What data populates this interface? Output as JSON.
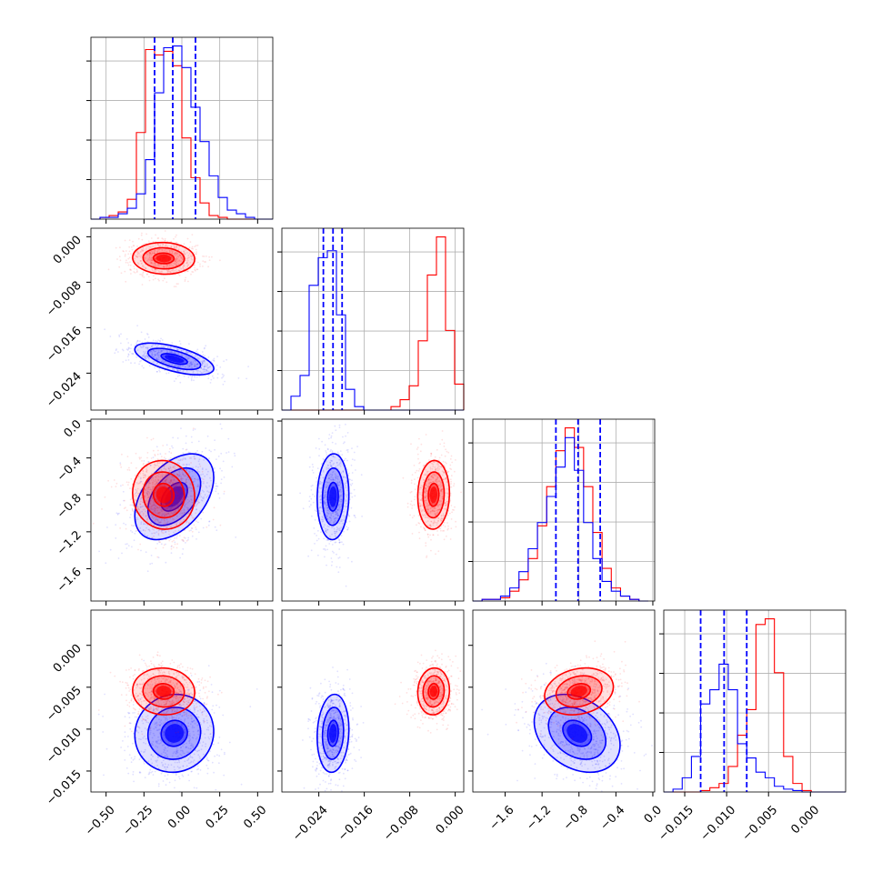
{
  "chart_data": {
    "type": "corner",
    "colors": {
      "blue": "#0000ff",
      "red": "#ff0000",
      "grid": "#b0b0b0",
      "frame": "#000000"
    },
    "grid": true,
    "parameters": [
      {
        "range": [
          -0.6,
          0.6
        ],
        "ticks": [
          -0.5,
          -0.25,
          0.0,
          0.25,
          0.5
        ],
        "tick_labels": [
          "−0.50",
          "−0.25",
          "0.00",
          "0.25",
          "0.50"
        ]
      },
      {
        "range": [
          -0.0305,
          0.0015
        ],
        "ticks": [
          -0.024,
          -0.016,
          -0.008,
          0.0
        ],
        "tick_labels": [
          "−0.024",
          "−0.016",
          "−0.008",
          "0.000"
        ]
      },
      {
        "range": [
          -1.95,
          0.02
        ],
        "ticks": [
          -1.6,
          -1.2,
          -0.8,
          -0.4,
          0.0
        ],
        "tick_labels": [
          "−1.6",
          "−1.2",
          "−0.8",
          "−0.4",
          "0.0"
        ]
      },
      {
        "range": [
          -0.0175,
          0.0042
        ],
        "ticks": [
          -0.015,
          -0.01,
          -0.005,
          0.0
        ],
        "tick_labels": [
          "−0.015",
          "−0.010",
          "−0.005",
          "0.000"
        ]
      }
    ],
    "series": [
      {
        "color": "blue",
        "mean": [
          -0.05,
          -0.0215,
          -0.82,
          -0.0105
        ],
        "std": [
          0.14,
          0.0015,
          0.25,
          0.0025
        ],
        "corr": [
          [
            1,
            -0.6,
            0.45,
            0.05
          ],
          [
            -0.6,
            1,
            0.05,
            0.1
          ],
          [
            0.45,
            0.05,
            1,
            -0.3
          ],
          [
            0.05,
            0.1,
            -0.3,
            1
          ]
        ]
      },
      {
        "color": "red",
        "mean": [
          -0.12,
          -0.0038,
          -0.8,
          -0.0055
        ],
        "std": [
          0.11,
          0.0015,
          0.2,
          0.0015
        ],
        "corr": [
          [
            1,
            -0.05,
            -0.05,
            -0.05
          ],
          [
            -0.05,
            1,
            0.05,
            0.05
          ],
          [
            -0.05,
            0.05,
            1,
            0.2
          ],
          [
            -0.05,
            0.05,
            0.2,
            1
          ]
        ]
      }
    ],
    "quantile_lines": [
      {
        "color": "blue",
        "values": [
          -0.18,
          -0.06,
          0.09
        ]
      },
      {
        "color": "blue",
        "values": [
          -0.0232,
          -0.0215,
          -0.0199
        ]
      },
      {
        "color": "blue",
        "values": [
          -1.05,
          -0.81,
          -0.57
        ]
      },
      {
        "color": "blue",
        "values": [
          -0.0131,
          -0.0103,
          -0.0076
        ]
      }
    ],
    "histograms": [
      {
        "edges": [
          -0.6,
          -0.54,
          -0.48,
          -0.42,
          -0.36,
          -0.3,
          -0.24,
          -0.18,
          -0.12,
          -0.06,
          0.0,
          0.06,
          0.12,
          0.18,
          0.24,
          0.3,
          0.36,
          0.42,
          0.48,
          0.54,
          0.6
        ],
        "blue": [
          0,
          1,
          1,
          3,
          6,
          14,
          33,
          70,
          95,
          96,
          84,
          62,
          43,
          24,
          12,
          5,
          3,
          1,
          0,
          0
        ],
        "red": [
          0,
          1,
          2,
          4,
          11,
          48,
          94,
          91,
          93,
          85,
          45,
          23,
          9,
          2,
          1,
          0,
          0,
          0,
          0,
          0
        ]
      },
      {
        "edges": [
          -0.0305,
          -0.0289,
          -0.0273,
          -0.0257,
          -0.0241,
          -0.0225,
          -0.0209,
          -0.0193,
          -0.0177,
          -0.0161,
          -0.0145,
          -0.0129,
          -0.0113,
          -0.0097,
          -0.0081,
          -0.0065,
          -0.0049,
          -0.0033,
          -0.0017,
          -0.0001,
          0.0015
        ],
        "blue": [
          0,
          8,
          20,
          72,
          88,
          92,
          55,
          12,
          2,
          0,
          0,
          0,
          0,
          0,
          0,
          0,
          0,
          0,
          0,
          0
        ],
        "red": [
          0,
          0,
          0,
          0,
          0,
          0,
          0,
          0,
          0,
          0,
          0,
          0,
          2,
          6,
          14,
          40,
          78,
          100,
          46,
          15
        ]
      },
      {
        "edges": [
          -1.95,
          -1.85,
          -1.75,
          -1.65,
          -1.55,
          -1.45,
          -1.35,
          -1.25,
          -1.15,
          -1.05,
          -0.95,
          -0.85,
          -0.75,
          -0.65,
          -0.55,
          -0.45,
          -0.35,
          -0.25,
          -0.15,
          -0.05
        ],
        "blue": [
          0,
          1,
          1,
          3,
          8,
          18,
          32,
          48,
          64,
          82,
          100,
          80,
          48,
          26,
          12,
          6,
          3,
          1,
          0
        ],
        "red": [
          0,
          1,
          1,
          2,
          6,
          13,
          26,
          46,
          70,
          92,
          106,
          94,
          70,
          42,
          20,
          8,
          3,
          1,
          0
        ]
      },
      {
        "edges": [
          -0.0175,
          -0.0164,
          -0.0153,
          -0.0142,
          -0.0131,
          -0.012,
          -0.0109,
          -0.0098,
          -0.0087,
          -0.0076,
          -0.0065,
          -0.0054,
          -0.0043,
          -0.0032,
          -0.0021,
          -0.001,
          0.0001,
          0.0012,
          0.0023,
          0.0034,
          0.0042
        ],
        "blue": [
          0,
          2,
          10,
          25,
          62,
          72,
          90,
          72,
          34,
          24,
          14,
          10,
          4,
          2,
          1,
          0,
          0,
          0,
          0,
          0
        ],
        "red": [
          0,
          0,
          0,
          0,
          1,
          3,
          6,
          18,
          40,
          58,
          118,
          122,
          84,
          25,
          6,
          1,
          0,
          0,
          0,
          0
        ]
      }
    ]
  }
}
